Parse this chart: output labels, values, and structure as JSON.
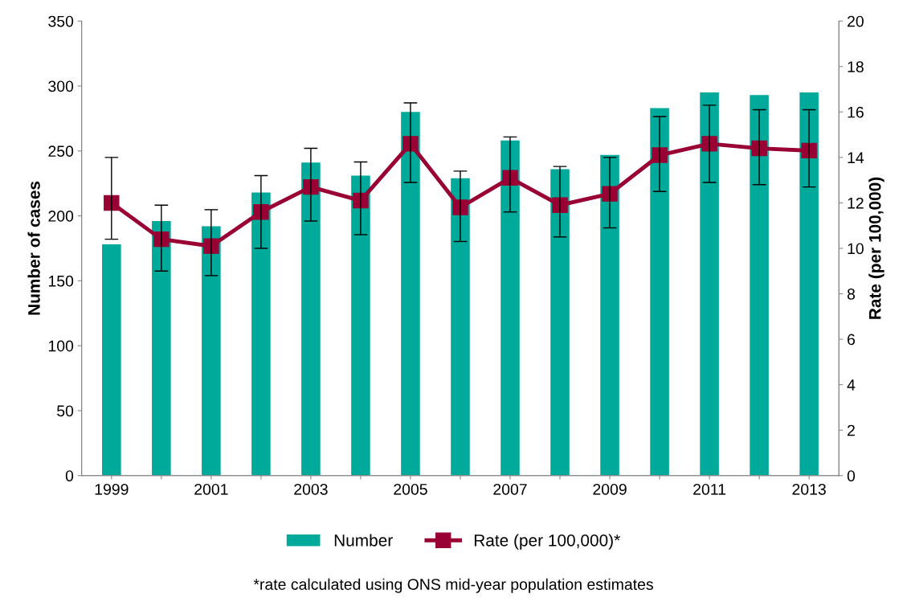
{
  "chart_data": {
    "type": "bar",
    "ylabel": "Number of cases",
    "y2label": "Rate (per 100,000)",
    "categories": [
      "1999",
      null,
      "2001",
      null,
      "2003",
      null,
      "2005",
      null,
      "2007",
      null,
      "2009",
      null,
      "2011",
      null,
      "2013"
    ],
    "series": [
      {
        "name": "Number",
        "color": "#00aa9b",
        "values": [
          178,
          196,
          192,
          218,
          241,
          231,
          280,
          229,
          258,
          236,
          247,
          283,
          295,
          293,
          295
        ]
      },
      {
        "name": "Rate (per 100,000)*",
        "type": "line",
        "axis": "y2",
        "color": "#990033",
        "marker": "square",
        "values": [
          12.0,
          10.4,
          10.1,
          11.6,
          12.7,
          12.1,
          14.6,
          11.8,
          13.1,
          11.9,
          12.4,
          14.1,
          14.6,
          14.4,
          14.3
        ],
        "errors": [
          [
            10.4,
            14.0
          ],
          [
            9.0,
            11.9
          ],
          [
            8.8,
            11.7
          ],
          [
            10.0,
            13.2
          ],
          [
            11.2,
            14.4
          ],
          [
            10.6,
            13.8
          ],
          [
            12.9,
            16.4
          ],
          [
            10.3,
            13.4
          ],
          [
            11.6,
            14.9
          ],
          [
            10.5,
            13.6
          ],
          [
            10.9,
            14.0
          ],
          [
            12.5,
            15.8
          ],
          [
            12.9,
            16.3
          ],
          [
            12.8,
            16.1
          ],
          [
            12.7,
            16.1
          ]
        ]
      }
    ],
    "ylim": [
      0,
      350
    ],
    "yticks": [
      0,
      50,
      100,
      150,
      200,
      250,
      300,
      350
    ],
    "y2lim": [
      0,
      20
    ],
    "y2ticks": [
      0,
      2,
      4,
      6,
      8,
      10,
      12,
      14,
      16,
      18,
      20
    ],
    "grid": false,
    "legend": "bottom",
    "annotations": [
      "*rate calculated using ONS mid-year population estimates"
    ]
  }
}
